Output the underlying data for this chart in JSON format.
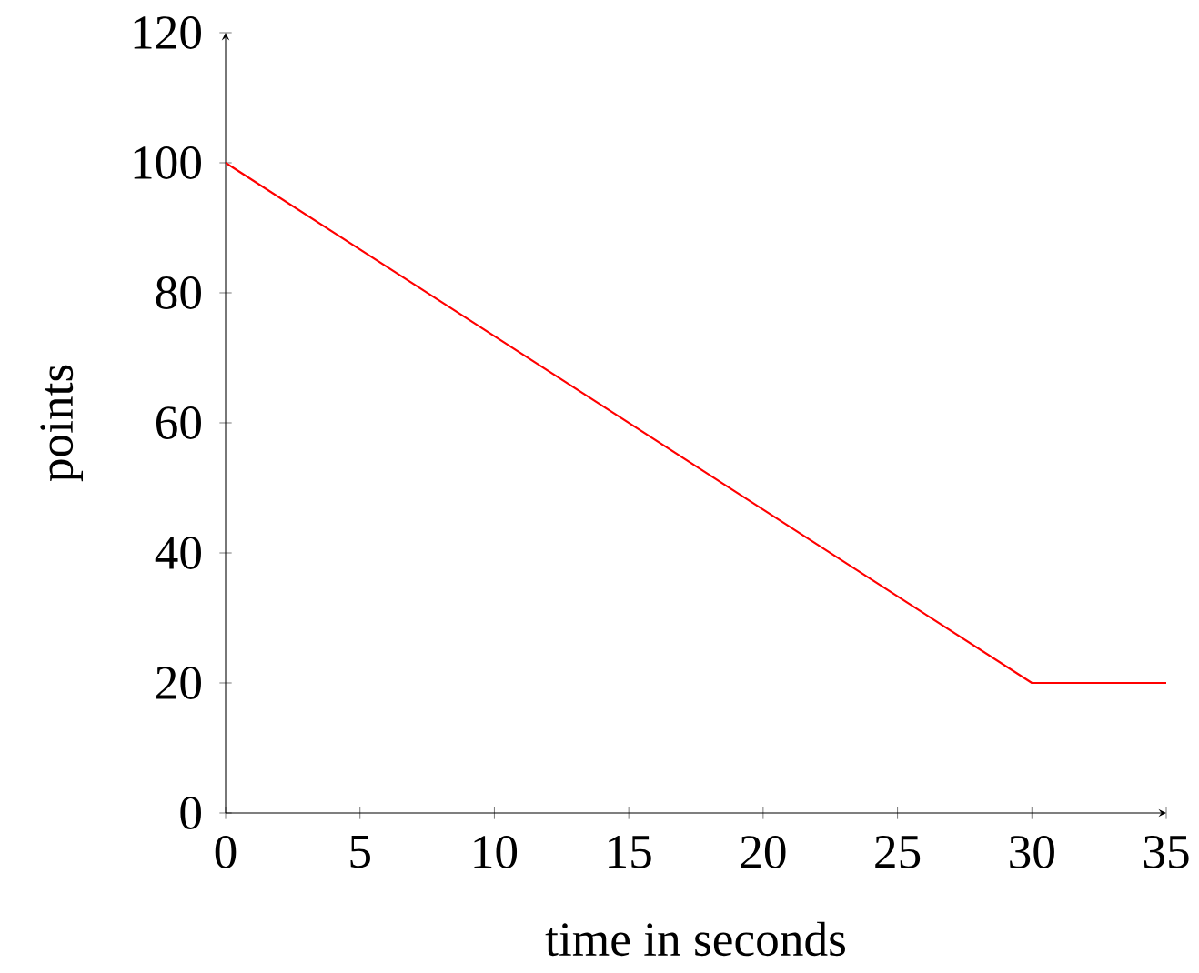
{
  "chart_data": {
    "type": "line",
    "xlabel": "time in seconds",
    "ylabel": "points",
    "x": [
      0,
      30,
      35
    ],
    "series": [
      {
        "color": "#ff0000",
        "values": [
          100,
          20,
          20
        ]
      }
    ],
    "xlim": [
      0,
      35
    ],
    "ylim": [
      0,
      120
    ],
    "xticks": [
      0,
      5,
      10,
      15,
      20,
      25,
      30,
      35
    ],
    "yticks": [
      0,
      20,
      40,
      60,
      80,
      100,
      120
    ]
  }
}
